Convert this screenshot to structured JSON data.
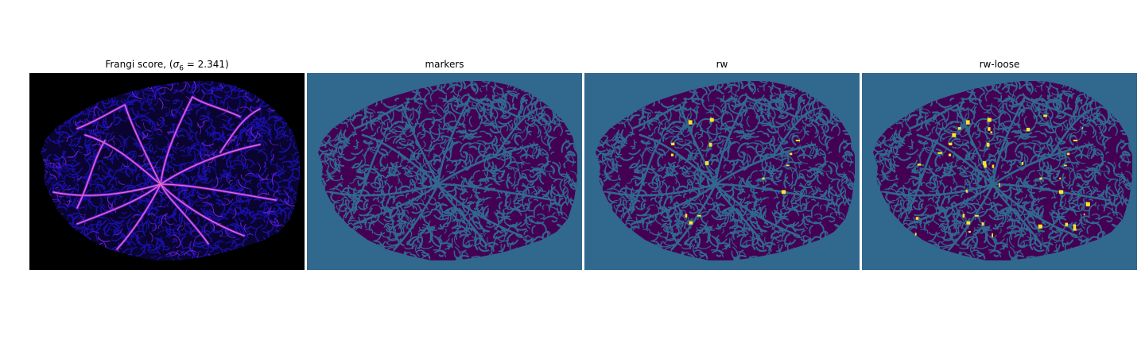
{
  "figure": {
    "panels": [
      {
        "title_text": "Frangi score, (",
        "title_sigma": "σ",
        "title_sub": "6",
        "title_value": " = 2.341)"
      },
      {
        "title": "markers"
      },
      {
        "title": "rw"
      },
      {
        "title": "rw-loose"
      }
    ]
  },
  "colors": {
    "frangi_background": "#000000",
    "frangi_low": "#1a0fa8",
    "frangi_mid": "#6a1fd0",
    "frangi_high": "#f26bc8",
    "label_background": "#31688e",
    "label_region": "#440154",
    "label_highlight": "#fde725"
  }
}
